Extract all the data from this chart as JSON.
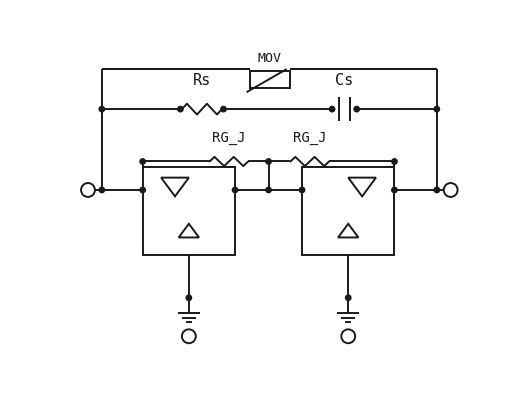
{
  "bg_color": "#ffffff",
  "line_color": "#1a1a1a",
  "line_width": 1.4,
  "fig_width": 5.27,
  "fig_height": 3.96,
  "mov_label": "MOV",
  "rs_label": "Rs",
  "cs_label": "Cs",
  "rgj1_label": "RG_J",
  "rgj2_label": "RG_J"
}
